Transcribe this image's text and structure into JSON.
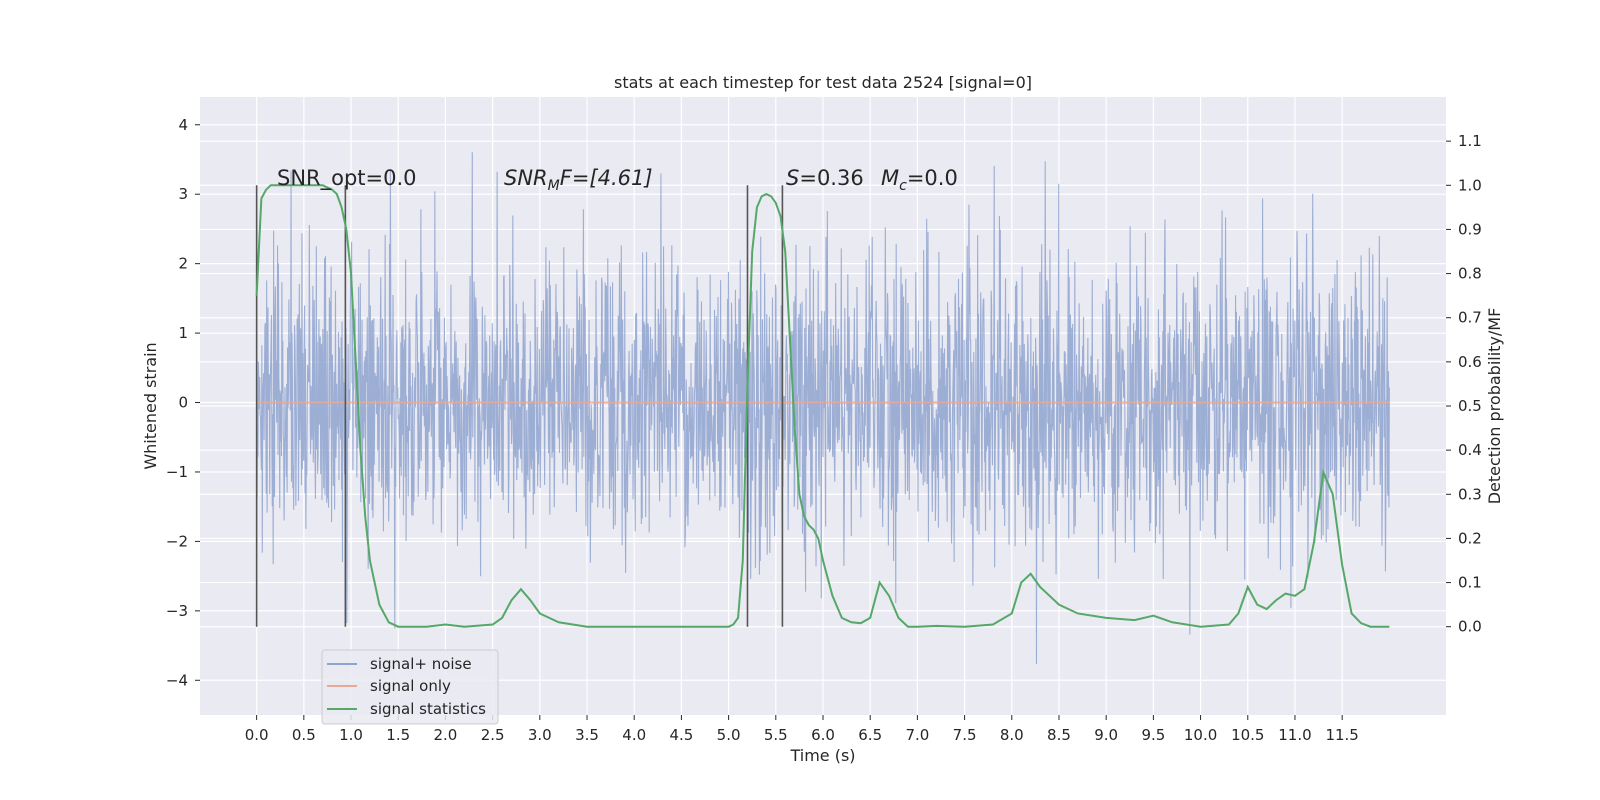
{
  "chart_data": {
    "type": "line",
    "title": "stats at each timestep for test data 2524 [signal=0]",
    "xlabel": "Time (s)",
    "ylabel_left": "Whitened strain",
    "ylabel_right": "Detection probability/MF",
    "xlim": [
      -0.6,
      12.6
    ],
    "ylim_left": [
      -4.5,
      4.4
    ],
    "ylim_right": [
      -0.2,
      1.2
    ],
    "x_ticks": [
      "0.0",
      "0.5",
      "1.0",
      "1.5",
      "2.0",
      "2.5",
      "3.0",
      "3.5",
      "4.0",
      "4.5",
      "5.0",
      "5.5",
      "6.0",
      "6.5",
      "7.0",
      "7.5",
      "8.0",
      "8.5",
      "9.0",
      "9.5",
      "10.0",
      "10.5",
      "11.0",
      "11.5"
    ],
    "y_ticks_left": [
      "−4",
      "−3",
      "−2",
      "−1",
      "0",
      "1",
      "2",
      "3",
      "4"
    ],
    "y_ticks_right": [
      "0.0",
      "0.1",
      "0.2",
      "0.3",
      "0.4",
      "0.5",
      "0.6",
      "0.7",
      "0.8",
      "0.9",
      "1.0",
      "1.1"
    ],
    "annotations": {
      "snr_opt": "SNR_opt=0.0",
      "snr_mf_main": "SNR",
      "snr_mf_sub": "M",
      "snr_mf_rest": "F=[4.61]",
      "s_label": "S",
      "s_value": "=0.36",
      "mc_label": "M",
      "mc_sub": "c",
      "mc_value": "=0.0"
    },
    "vertical_lines_x": [
      0.0,
      0.94,
      5.2,
      5.57
    ],
    "noise": {
      "x_start": 0.0,
      "x_end": 12.0,
      "core_amplitude": 1.3,
      "max_amplitude": 3.96,
      "min_amplitude": -4.05
    },
    "series": [
      {
        "name": "signal+ noise",
        "color": "#8fa3cf",
        "axis": "left"
      },
      {
        "name": "signal only",
        "color": "#e8a893",
        "axis": "left",
        "x": [
          0.0,
          12.0
        ],
        "y": [
          0.0,
          0.0
        ]
      },
      {
        "name": "signal statistics",
        "color": "#55a868",
        "axis": "right",
        "x": [
          0.0,
          0.05,
          0.1,
          0.15,
          0.2,
          0.3,
          0.4,
          0.5,
          0.6,
          0.7,
          0.8,
          0.85,
          0.9,
          0.95,
          1.0,
          1.05,
          1.1,
          1.15,
          1.2,
          1.3,
          1.4,
          1.5,
          1.6,
          1.8,
          2.0,
          2.2,
          2.5,
          2.6,
          2.7,
          2.8,
          2.9,
          3.0,
          3.2,
          3.5,
          4.0,
          4.5,
          5.0,
          5.05,
          5.1,
          5.15,
          5.2,
          5.25,
          5.3,
          5.35,
          5.4,
          5.45,
          5.5,
          5.55,
          5.6,
          5.65,
          5.7,
          5.75,
          5.8,
          5.85,
          5.9,
          5.95,
          6.0,
          6.1,
          6.2,
          6.3,
          6.4,
          6.5,
          6.6,
          6.7,
          6.8,
          6.9,
          7.0,
          7.2,
          7.5,
          7.8,
          8.0,
          8.1,
          8.2,
          8.3,
          8.4,
          8.5,
          8.7,
          9.0,
          9.3,
          9.5,
          9.7,
          10.0,
          10.3,
          10.4,
          10.5,
          10.6,
          10.7,
          10.8,
          10.9,
          11.0,
          11.1,
          11.2,
          11.3,
          11.4,
          11.5,
          11.6,
          11.7,
          11.8,
          12.0
        ],
        "y": [
          0.75,
          0.97,
          0.99,
          1.0,
          1.0,
          1.0,
          1.0,
          1.0,
          1.0,
          1.0,
          0.99,
          0.98,
          0.95,
          0.9,
          0.8,
          0.6,
          0.4,
          0.25,
          0.15,
          0.05,
          0.01,
          0.0,
          0.0,
          0.0,
          0.005,
          0.0,
          0.005,
          0.02,
          0.06,
          0.085,
          0.06,
          0.03,
          0.01,
          0.0,
          0.0,
          0.0,
          0.0,
          0.005,
          0.02,
          0.15,
          0.55,
          0.85,
          0.95,
          0.975,
          0.98,
          0.975,
          0.96,
          0.93,
          0.85,
          0.65,
          0.45,
          0.3,
          0.25,
          0.23,
          0.22,
          0.2,
          0.15,
          0.07,
          0.02,
          0.01,
          0.008,
          0.02,
          0.1,
          0.07,
          0.02,
          0.0,
          0.0,
          0.002,
          0.0,
          0.005,
          0.03,
          0.1,
          0.12,
          0.09,
          0.07,
          0.05,
          0.03,
          0.02,
          0.015,
          0.025,
          0.01,
          0.0,
          0.005,
          0.03,
          0.09,
          0.05,
          0.04,
          0.06,
          0.075,
          0.07,
          0.085,
          0.19,
          0.35,
          0.3,
          0.14,
          0.03,
          0.008,
          0.0,
          0.0
        ]
      }
    ],
    "legend": {
      "position": "lower-left"
    },
    "grid": true
  }
}
